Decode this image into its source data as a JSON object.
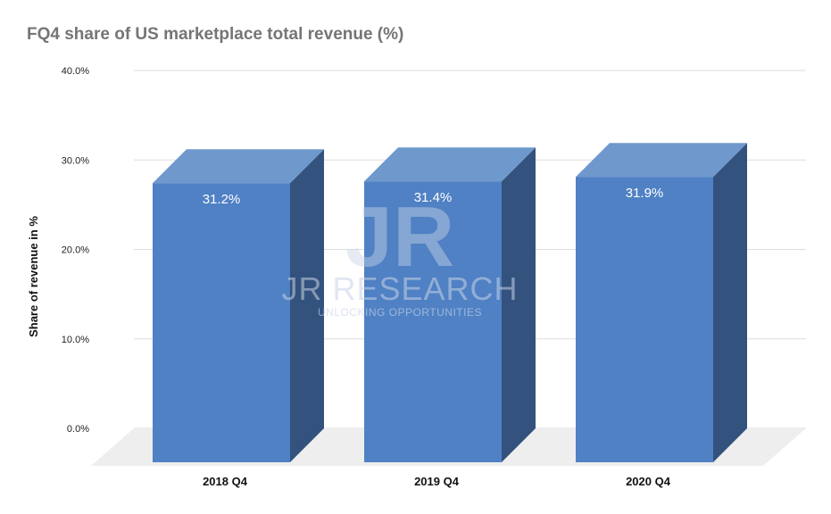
{
  "chart_data": {
    "type": "bar",
    "title": "FQ4 share of US marketplace total revenue (%)",
    "ylabel": "Share of revenue in %",
    "xlabel": "",
    "categories": [
      "2018 Q4",
      "2019 Q4",
      "2020 Q4"
    ],
    "values": [
      31.2,
      31.4,
      31.9
    ],
    "value_labels": [
      "31.2%",
      "31.4%",
      "31.9%"
    ],
    "yticks": [
      0,
      10,
      20,
      30,
      40
    ],
    "ytick_labels": [
      "0.0%",
      "10.0%",
      "20.0%",
      "30.0%",
      "40.0%"
    ],
    "ylim": [
      0,
      40
    ],
    "grid": true,
    "legend": "none",
    "style": "3d-column",
    "colors": {
      "front": "#4f81c4",
      "top": "#6f99cc",
      "side": "#33527d",
      "floor": "#eeeeee",
      "grid": "#dddddd"
    }
  },
  "watermark": {
    "logo": "JR",
    "name": "JR RESEARCH",
    "tagline": "UNLOCKING OPPORTUNITIES"
  }
}
